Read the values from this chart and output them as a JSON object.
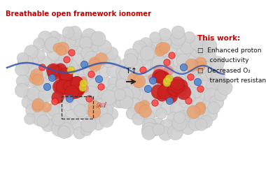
{
  "background_color": "#ffffff",
  "title_text": "Breathable open framework ionomer",
  "title_color": "#cc0000",
  "title_fontsize": 7.2,
  "this_work_title": "This work:",
  "this_work_color": "#cc0000",
  "this_work_fontsize": 7.5,
  "bullet1_line1": "□  Enhanced proton",
  "bullet1_line2": "    conductivity",
  "bullet2_line1": "□  Decreased O₂",
  "bullet2_line2": "    transport resistance",
  "bullet_fontsize": 6.5,
  "arrow_label": "T↑",
  "arrow_label_fontsize": 8,
  "figwidth": 3.8,
  "figheight": 2.45,
  "dpi": 100,
  "gray_sphere": "#d0d0d0",
  "gray_sphere_edge": "#b0b0b0",
  "red_cluster": "#cc2222",
  "pink_cluster": "#e88080",
  "blue_dot": "#5588cc",
  "tan_color": "#e8c4a0",
  "orange_color": "#e8a070",
  "yellow_color": "#ddcc33",
  "blue_line": "#3355aa"
}
